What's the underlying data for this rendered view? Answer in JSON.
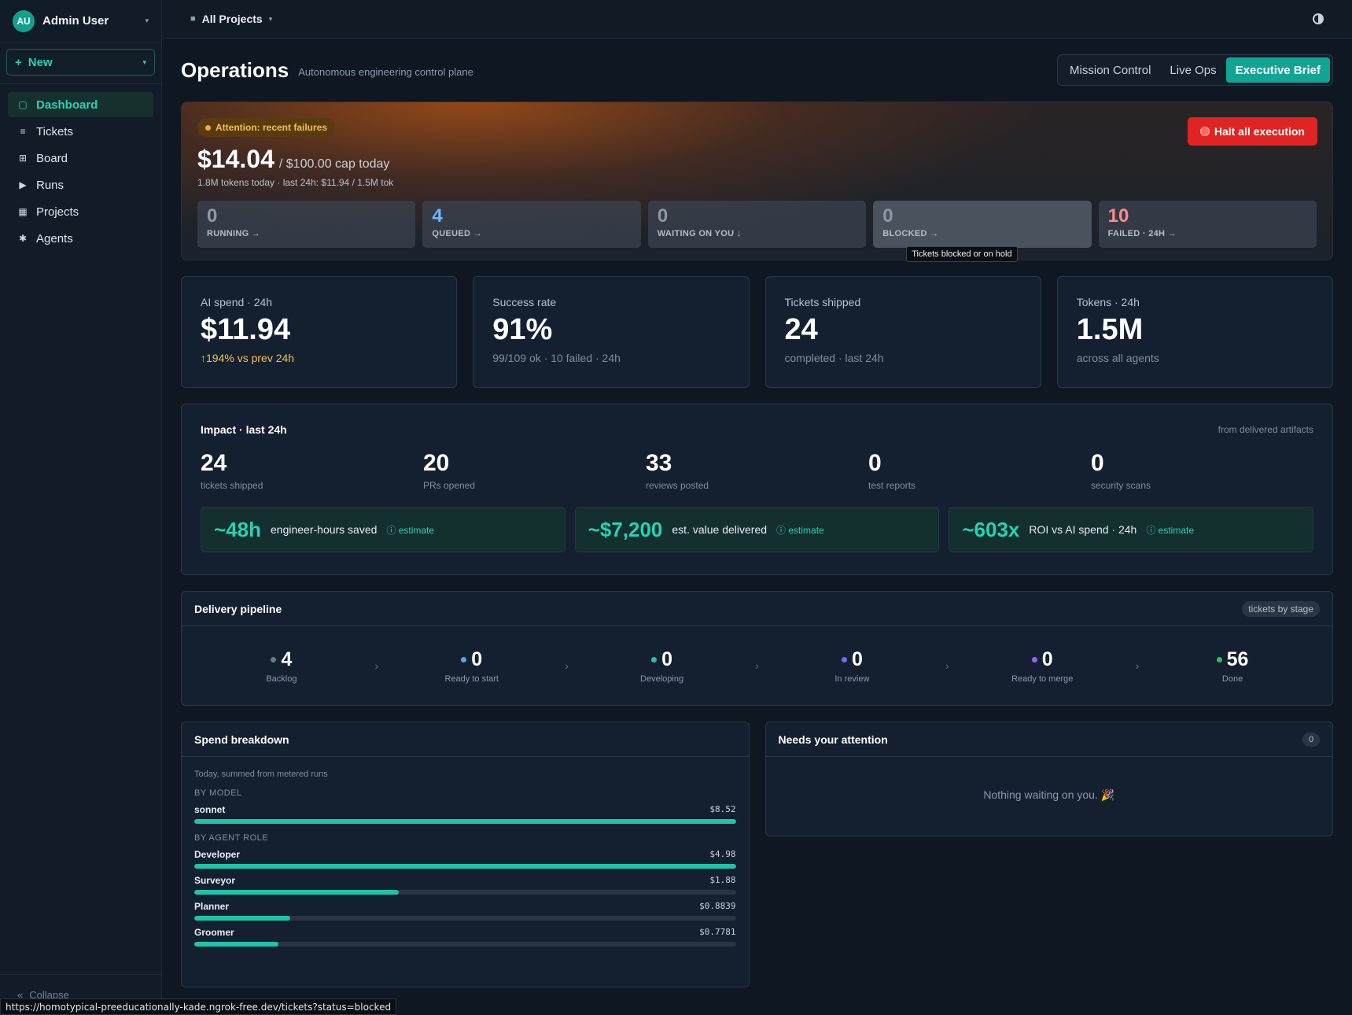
{
  "user": {
    "initials": "AU",
    "name": "Admin User"
  },
  "new_label": "New",
  "nav": [
    {
      "label": "Dashboard",
      "icon": "square-icon"
    },
    {
      "label": "Tickets",
      "icon": "list-icon"
    },
    {
      "label": "Board",
      "icon": "grid-icon"
    },
    {
      "label": "Runs",
      "icon": "play-icon"
    },
    {
      "label": "Projects",
      "icon": "table-icon"
    },
    {
      "label": "Agents",
      "icon": "asterisk-icon"
    }
  ],
  "collapse_label": "Collapse",
  "topbar": {
    "project": "All Projects"
  },
  "page": {
    "title": "Operations",
    "subtitle": "Autonomous engineering control plane"
  },
  "views": [
    "Mission Control",
    "Live Ops",
    "Executive Brief"
  ],
  "hero": {
    "attention": "Attention: recent failures",
    "halt_label": "Halt all execution",
    "amount": "$14.04",
    "cap": "/ $100.00 cap today",
    "meta": "1.8M tokens today  ·  last 24h: $11.94 / 1.5M tok",
    "stats": [
      {
        "value": "0",
        "label": "RUNNING →"
      },
      {
        "value": "4",
        "label": "QUEUED →"
      },
      {
        "value": "0",
        "label": "WAITING ON YOU ↓"
      },
      {
        "value": "0",
        "label": "BLOCKED →"
      },
      {
        "value": "10",
        "label": "FAILED · 24H →"
      }
    ],
    "tooltip": "Tickets blocked or on hold"
  },
  "kpis": [
    {
      "title": "AI spend · 24h",
      "value": "$11.94",
      "sub": "↑194% vs prev 24h"
    },
    {
      "title": "Success rate",
      "value": "91%",
      "sub": "99/109 ok · 10 failed · 24h"
    },
    {
      "title": "Tickets shipped",
      "value": "24",
      "sub": "completed · last 24h"
    },
    {
      "title": "Tokens · 24h",
      "value": "1.5M",
      "sub": "across all agents"
    }
  ],
  "impact": {
    "title": "Impact · last 24h",
    "note": "from delivered artifacts",
    "stats": [
      {
        "value": "24",
        "label": "tickets shipped"
      },
      {
        "value": "20",
        "label": "PRs opened"
      },
      {
        "value": "33",
        "label": "reviews posted"
      },
      {
        "value": "0",
        "label": "test reports"
      },
      {
        "value": "0",
        "label": "security scans"
      }
    ],
    "estimates": [
      {
        "value": "~48h",
        "label": "engineer-hours saved",
        "tag": "ⓘ estimate"
      },
      {
        "value": "~$7,200",
        "label": "est. value delivered",
        "tag": "ⓘ estimate"
      },
      {
        "value": "~603x",
        "label": "ROI vs AI spend · 24h",
        "tag": "ⓘ estimate"
      }
    ]
  },
  "pipeline": {
    "title": "Delivery pipeline",
    "chip": "tickets by stage",
    "stages": [
      {
        "value": "4",
        "label": "Backlog",
        "color": "#6b7785"
      },
      {
        "value": "0",
        "label": "Ready to start",
        "color": "#4aa8ff"
      },
      {
        "value": "0",
        "label": "Developing",
        "color": "#1ec4aa"
      },
      {
        "value": "0",
        "label": "In review",
        "color": "#6a6cff"
      },
      {
        "value": "0",
        "label": "Ready to merge",
        "color": "#a25cff"
      },
      {
        "value": "56",
        "label": "Done",
        "color": "#22c55e"
      }
    ]
  },
  "spend": {
    "title": "Spend breakdown",
    "note": "Today, summed from metered runs",
    "by_model_label": "BY MODEL",
    "models": [
      {
        "name": "sonnet",
        "amount": "$8.52",
        "fraction": 1.0
      }
    ],
    "by_role_label": "BY AGENT ROLE",
    "roles": [
      {
        "name": "Developer",
        "amount": "$4.98",
        "fraction": 1.0
      },
      {
        "name": "Surveyor",
        "amount": "$1.88",
        "fraction": 0.378
      },
      {
        "name": "Planner",
        "amount": "$0.8839",
        "fraction": 0.177
      },
      {
        "name": "Groomer",
        "amount": "$0.7781",
        "fraction": 0.156
      }
    ]
  },
  "attention": {
    "title": "Needs your attention",
    "count": "0",
    "empty": "Nothing waiting on you. 🎉"
  },
  "status_url": "https://homotypical-preeducationally-kade.ngrok-free.dev/tickets?status=blocked"
}
